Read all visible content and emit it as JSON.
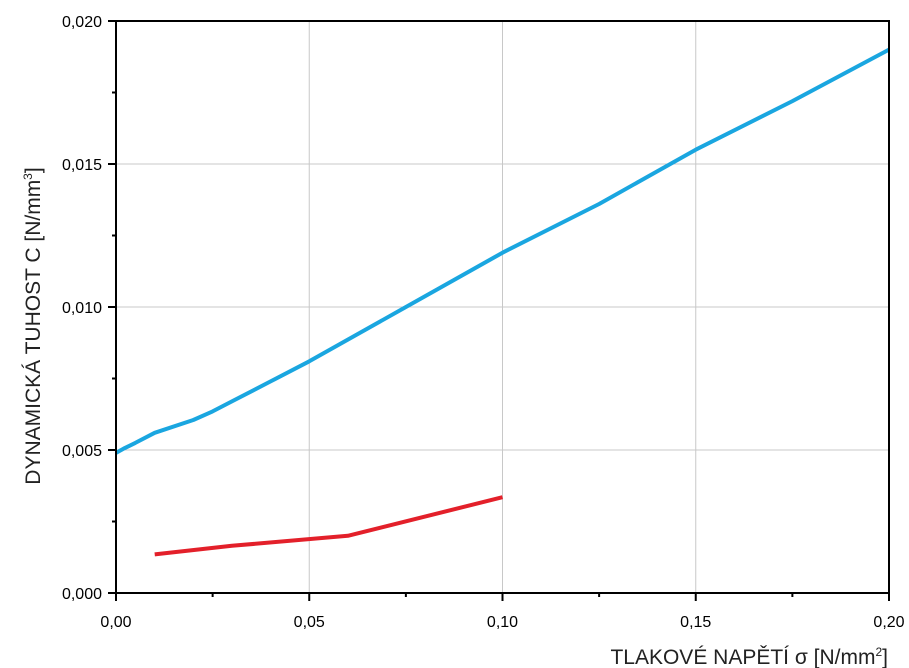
{
  "chart_data": {
    "type": "line",
    "xlabel": "TLAKOVÉ NAPĚTÍ σ [N/mm²]",
    "ylabel": "DYNAMICKÁ TUHOST C [N/mm³]",
    "xlabel_main": "TLAKOVÉ NAPĚTÍ σ [N/mm",
    "xlabel_sup": "2",
    "xlabel_end": "]",
    "ylabel_main": "DYNAMICKÁ TUHOST C [N/mm",
    "ylabel_sup": "3",
    "ylabel_end": "]",
    "xlim": [
      0.0,
      0.2
    ],
    "ylim": [
      0.0,
      0.02
    ],
    "x_ticks": [
      0.0,
      0.05,
      0.1,
      0.15,
      0.2
    ],
    "x_tick_labels": [
      "0,00",
      "0,05",
      "0,10",
      "0,15",
      "0,20"
    ],
    "y_ticks": [
      0.0,
      0.005,
      0.01,
      0.015,
      0.02
    ],
    "y_tick_labels": [
      "0,000",
      "0,005",
      "0,010",
      "0,015",
      "0,020"
    ],
    "grid": true,
    "series": [
      {
        "color": "#1aa6e0",
        "x": [
          0.0,
          0.002,
          0.005,
          0.01,
          0.02,
          0.025,
          0.03,
          0.04,
          0.05,
          0.075,
          0.1,
          0.125,
          0.15,
          0.175,
          0.2
        ],
        "y": [
          0.0049,
          0.00505,
          0.00525,
          0.0056,
          0.00605,
          0.00635,
          0.0067,
          0.0074,
          0.0081,
          0.01,
          0.0119,
          0.0136,
          0.0155,
          0.0172,
          0.019
        ]
      },
      {
        "color": "#e3202a",
        "x": [
          0.01,
          0.03,
          0.06,
          0.1
        ],
        "y": [
          0.00135,
          0.00165,
          0.002,
          0.00335
        ]
      }
    ]
  }
}
